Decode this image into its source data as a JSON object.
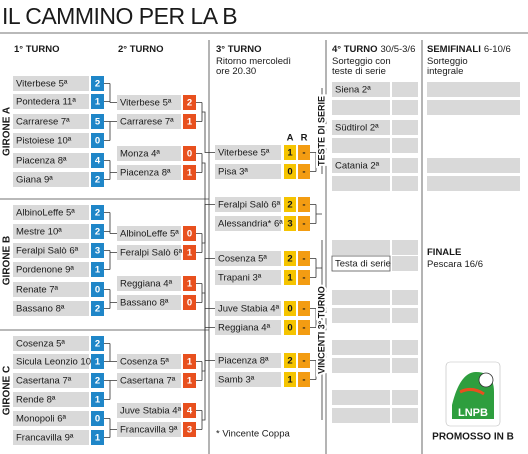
{
  "title": "IL CAMMINO PER LA B",
  "columns": [
    {
      "heading": "1° TURNO"
    },
    {
      "heading": "2° TURNO"
    },
    {
      "heading": "3° TURNO",
      "note": [
        "Ritorno mercoledì",
        "ore 20.30"
      ]
    },
    {
      "heading": "4° TURNO",
      "dates": "30/5-3/6",
      "note": [
        "Sorteggio con",
        "teste di serie"
      ]
    },
    {
      "heading": "SEMIFINALI",
      "dates": "6-10/6",
      "note": [
        "Sorteggio",
        "integrale"
      ]
    }
  ],
  "groups": [
    "GIRONE A",
    "GIRONE B",
    "GIRONE C"
  ],
  "round1": [
    [
      {
        "team": "Viterbese 5ª",
        "score": 2
      },
      {
        "team": "Pontedera 11ª",
        "score": 1
      },
      {
        "team": "Carrarese 7ª",
        "score": 5
      },
      {
        "team": "Pistoiese 10ª",
        "score": 0
      },
      {
        "team": "Piacenza 8ª",
        "score": 4
      },
      {
        "team": "Giana 9ª",
        "score": 2
      }
    ],
    [
      {
        "team": "AlbinoLeffe 5ª",
        "score": 2
      },
      {
        "team": "Mestre 10ª",
        "score": 2
      },
      {
        "team": "Feralpi Salò 6ª",
        "score": 3
      },
      {
        "team": "Pordenone 9ª",
        "score": 1
      },
      {
        "team": "Renate 7ª",
        "score": 0
      },
      {
        "team": "Bassano 8ª",
        "score": 2
      }
    ],
    [
      {
        "team": "Cosenza 5ª",
        "score": 2
      },
      {
        "team": "Sicula Leonzio 10ª",
        "score": 1
      },
      {
        "team": "Casertana 7ª",
        "score": 2
      },
      {
        "team": "Rende 8ª",
        "score": 1
      },
      {
        "team": "Monopoli 6ª",
        "score": 0
      },
      {
        "team": "Francavilla 9ª",
        "score": 1
      }
    ]
  ],
  "round2": [
    [
      {
        "team": "Viterbese 5ª",
        "score": 2
      },
      {
        "team": "Carrarese 7ª",
        "score": 1
      },
      {
        "team": "Monza 4ª",
        "score": 0
      },
      {
        "team": "Piacenza 8ª",
        "score": 1
      }
    ],
    [
      {
        "team": "AlbinoLeffe 5ª",
        "score": 0
      },
      {
        "team": "Feralpi Salò 6ª",
        "score": 1
      },
      {
        "team": "Reggiana 4ª",
        "score": 1
      },
      {
        "team": "Bassano 8ª",
        "score": 0
      }
    ],
    [
      {
        "team": "Cosenza 5ª",
        "score": 1
      },
      {
        "team": "Casertana 7ª",
        "score": 1
      },
      {
        "team": "Juve Stabia 4ª",
        "score": 4
      },
      {
        "team": "Francavilla 9ª",
        "score": 3
      }
    ]
  ],
  "round3": {
    "legs": [
      "A",
      "R"
    ],
    "rows": [
      {
        "team": "Viterbese 5ª",
        "first": 1,
        "second": "-"
      },
      {
        "team": "Pisa 3ª",
        "first": 0,
        "second": "-"
      },
      {
        "team": "Feralpi Salò 6ª",
        "first": 2,
        "second": "-"
      },
      {
        "team": "Alessandria* 6ª",
        "first": 3,
        "second": "-"
      },
      {
        "team": "Cosenza 5ª",
        "first": 2,
        "second": "-"
      },
      {
        "team": "Trapani 3ª",
        "first": 1,
        "second": "-"
      },
      {
        "team": "Juve Stabia 4ª",
        "first": 0,
        "second": "-"
      },
      {
        "team": "Reggiana 4ª",
        "first": 0,
        "second": "-"
      },
      {
        "team": "Piacenza 8ª",
        "first": 2,
        "second": "-"
      },
      {
        "team": "Samb 3ª",
        "first": 1,
        "second": "-"
      }
    ]
  },
  "round4": {
    "seeded_label": "TESTE DI SERIE",
    "seeded": [
      "Siena 2ª",
      "Südtirol 2ª",
      "Catania 2ª"
    ],
    "winners_label": "VINCENTI 3° TURNO",
    "placeholder": "Testa di serie"
  },
  "final": {
    "heading": "FINALE",
    "detail": "Pescara 16/6"
  },
  "footnote": "* Vincente Coppa",
  "logo": "LNPB",
  "promoted": "PROMOSSO IN B"
}
